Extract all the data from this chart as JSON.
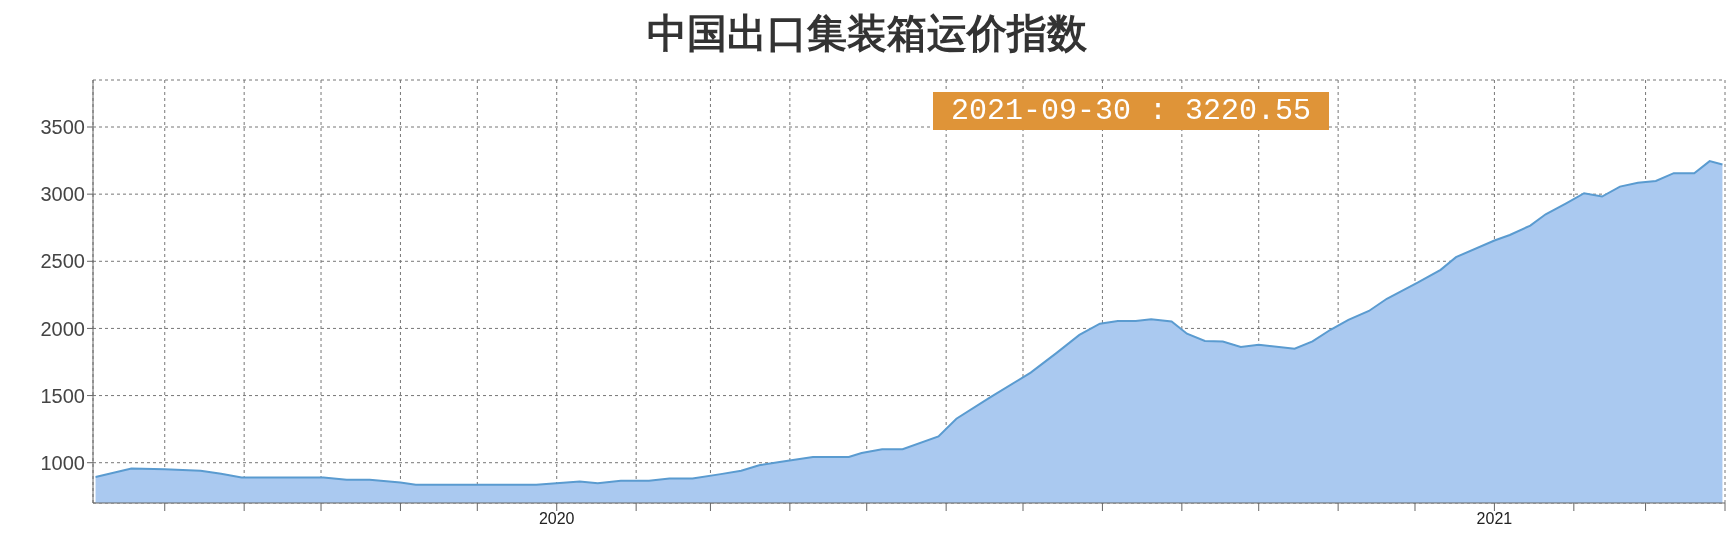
{
  "chart_data": {
    "type": "area",
    "title": "中国出口集装箱运价指数",
    "annotations": [
      "2021-09-30 : 3220.55"
    ],
    "x": [
      "2019-07-05",
      "2019-07-19",
      "2019-08-01",
      "2019-08-15",
      "2019-08-23",
      "2019-08-31",
      "2019-10-02",
      "2019-10-11",
      "2019-10-20",
      "2019-11-01",
      "2019-11-07",
      "2019-12-24",
      "2020-01-10",
      "2020-01-17",
      "2020-01-26",
      "2020-02-06",
      "2020-02-14",
      "2020-02-23",
      "2020-03-05",
      "2020-03-13",
      "2020-03-20",
      "2020-03-28",
      "2020-04-10",
      "2020-04-24",
      "2020-04-29",
      "2020-05-07",
      "2020-05-15",
      "2020-05-29",
      "2020-06-05",
      "2020-06-18",
      "2020-07-04",
      "2020-07-14",
      "2020-07-23",
      "2020-07-31",
      "2020-08-07",
      "2020-08-14",
      "2020-08-20",
      "2020-08-28",
      "2020-09-03",
      "2020-09-10",
      "2020-09-17",
      "2020-09-24",
      "2020-10-01",
      "2020-10-15",
      "2020-10-22",
      "2020-10-29",
      "2020-11-05",
      "2020-11-13",
      "2020-11-20",
      "2020-12-02",
      "2020-12-11",
      "2020-12-17",
      "2021-01-01",
      "2021-01-07",
      "2021-01-15",
      "2021-01-21",
      "2021-01-29",
      "2021-02-05",
      "2021-02-12",
      "2021-02-19",
      "2021-02-26",
      "2021-03-05",
      "2021-03-12",
      "2021-03-20",
      "2021-03-26",
      "2021-03-31"
    ],
    "series": [
      {
        "color": "#5a9bd0",
        "values": [
          894,
          956,
          952,
          940,
          917,
          890,
          890,
          873,
          873,
          853,
          836,
          836,
          861,
          848,
          865,
          865,
          883,
          883,
          915,
          940,
          981,
          1006,
          1043,
          1043,
          1072,
          1101,
          1101,
          1196,
          1328,
          1485,
          1671,
          1816,
          1952,
          2035,
          2056,
          2056,
          2068,
          2051,
          1961,
          1907,
          1903,
          1862,
          1878,
          1849,
          1903,
          1990,
          2064,
          2130,
          2221,
          2341,
          2436,
          2531,
          2655,
          2696,
          2766,
          2850,
          2932,
          3007,
          2982,
          3056,
          3085,
          3098,
          3156,
          3156,
          3246,
          3220.55
        ]
      }
    ],
    "xlim": [
      "2019-07-04",
      "2021-04-01"
    ],
    "xticks": [
      {
        "value": "2019-08-01",
        "label": null
      },
      {
        "value": "2019-09-01",
        "label": null
      },
      {
        "value": "2019-10-01",
        "label": null
      },
      {
        "value": "2019-11-01",
        "label": null
      },
      {
        "value": "2019-12-01",
        "label": null
      },
      {
        "value": "2020-01-01",
        "label": "2020"
      },
      {
        "value": "2020-02-01",
        "label": null
      },
      {
        "value": "2020-03-01",
        "label": null
      },
      {
        "value": "2020-04-01",
        "label": null
      },
      {
        "value": "2020-05-01",
        "label": null
      },
      {
        "value": "2020-06-01",
        "label": null
      },
      {
        "value": "2020-07-01",
        "label": null
      },
      {
        "value": "2020-08-01",
        "label": null
      },
      {
        "value": "2020-09-01",
        "label": null
      },
      {
        "value": "2020-10-01",
        "label": null
      },
      {
        "value": "2020-11-01",
        "label": null
      },
      {
        "value": "2020-12-01",
        "label": null
      },
      {
        "value": "2021-01-01",
        "label": "2021"
      },
      {
        "value": "2021-02-01",
        "label": null
      },
      {
        "value": "2021-03-01",
        "label": null
      },
      {
        "value": "2021-04-01",
        "label": null
      }
    ],
    "ylim": [
      700,
      3850
    ],
    "yticks": [
      1000,
      1500,
      2000,
      2500,
      3000,
      3500
    ],
    "grid": true
  }
}
